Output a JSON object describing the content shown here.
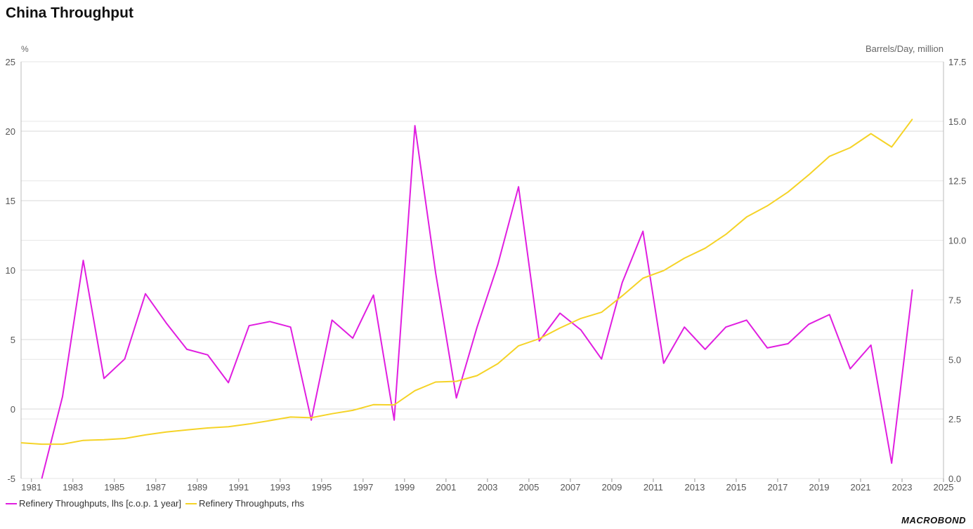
{
  "title": "China Throughput",
  "brand": "MACROBOND",
  "chart_data": {
    "type": "line",
    "title": "China Throughput",
    "left_axis": {
      "unit_label": "%",
      "min": -5,
      "max": 25,
      "ticks": [
        -5,
        0,
        5,
        10,
        15,
        20,
        25
      ]
    },
    "right_axis": {
      "unit_label": "Barrels/Day, million",
      "min": 0,
      "max": 17.5,
      "ticks": [
        "0.0",
        "2.5",
        "5.0",
        "7.5",
        "10.0",
        "12.5",
        "15.0",
        "17.5"
      ]
    },
    "x_axis": {
      "min": 1980.5,
      "max": 2025,
      "ticks": [
        "1981",
        "1983",
        "1985",
        "1987",
        "1989",
        "1991",
        "1993",
        "1995",
        "1997",
        "1999",
        "2001",
        "2003",
        "2005",
        "2007",
        "2009",
        "2011",
        "2013",
        "2015",
        "2017",
        "2019",
        "2021",
        "2023",
        "2025"
      ]
    },
    "grid": true,
    "legend_position": "bottom-left",
    "series": [
      {
        "name": "Refinery Throughputs, lhs [c.o.p. 1 year]",
        "axis": "left",
        "color": "#e01ee0",
        "x": [
          1981.5,
          1982.5,
          1983.5,
          1984.5,
          1985.5,
          1986.5,
          1987.5,
          1988.5,
          1989.5,
          1990.5,
          1991.5,
          1992.5,
          1993.5,
          1994.5,
          1995.5,
          1996.5,
          1997.5,
          1998.5,
          1999.5,
          2000.5,
          2001.5,
          2002.5,
          2003.5,
          2004.5,
          2005.5,
          2006.5,
          2007.5,
          2008.5,
          2009.5,
          2010.5,
          2011.5,
          2012.5,
          2013.5,
          2014.5,
          2015.5,
          2016.5,
          2017.5,
          2018.5,
          2019.5,
          2020.5,
          2021.5,
          2022.5,
          2023.5
        ],
        "values": [
          -5.0,
          0.9,
          10.7,
          2.2,
          3.6,
          8.3,
          6.2,
          4.3,
          3.9,
          1.9,
          6.0,
          6.3,
          5.9,
          -0.8,
          6.4,
          5.1,
          8.2,
          -0.8,
          20.4,
          9.8,
          0.8,
          5.9,
          10.4,
          16.0,
          4.9,
          6.9,
          5.7,
          3.6,
          9.1,
          12.8,
          3.3,
          5.9,
          4.3,
          5.9,
          6.4,
          4.4,
          4.7,
          6.1,
          6.8,
          2.9,
          4.6,
          -3.9,
          8.6
        ]
      },
      {
        "name": "Refinery Throughputs, rhs",
        "axis": "right",
        "color": "#f5d327",
        "x": [
          1980.5,
          1981.5,
          1982.5,
          1983.5,
          1984.5,
          1985.5,
          1986.5,
          1987.5,
          1988.5,
          1989.5,
          1990.5,
          1991.5,
          1992.5,
          1993.5,
          1994.5,
          1995.5,
          1996.5,
          1997.5,
          1998.5,
          1999.5,
          2000.5,
          2001.5,
          2002.5,
          2003.5,
          2004.5,
          2005.5,
          2006.5,
          2007.5,
          2008.5,
          2009.5,
          2010.5,
          2011.5,
          2012.5,
          2013.5,
          2014.5,
          2015.5,
          2016.5,
          2017.5,
          2018.5,
          2019.5,
          2020.5,
          2021.5,
          2022.5,
          2023.5
        ],
        "values": [
          1.5,
          1.44,
          1.44,
          1.6,
          1.63,
          1.68,
          1.83,
          1.95,
          2.04,
          2.12,
          2.17,
          2.29,
          2.43,
          2.58,
          2.55,
          2.72,
          2.86,
          3.1,
          3.09,
          3.69,
          4.05,
          4.08,
          4.32,
          4.82,
          5.57,
          5.87,
          6.32,
          6.72,
          6.98,
          7.67,
          8.41,
          8.73,
          9.25,
          9.67,
          10.25,
          10.98,
          11.45,
          12.03,
          12.75,
          13.53,
          13.89,
          14.48,
          13.92,
          15.09
        ]
      }
    ]
  }
}
